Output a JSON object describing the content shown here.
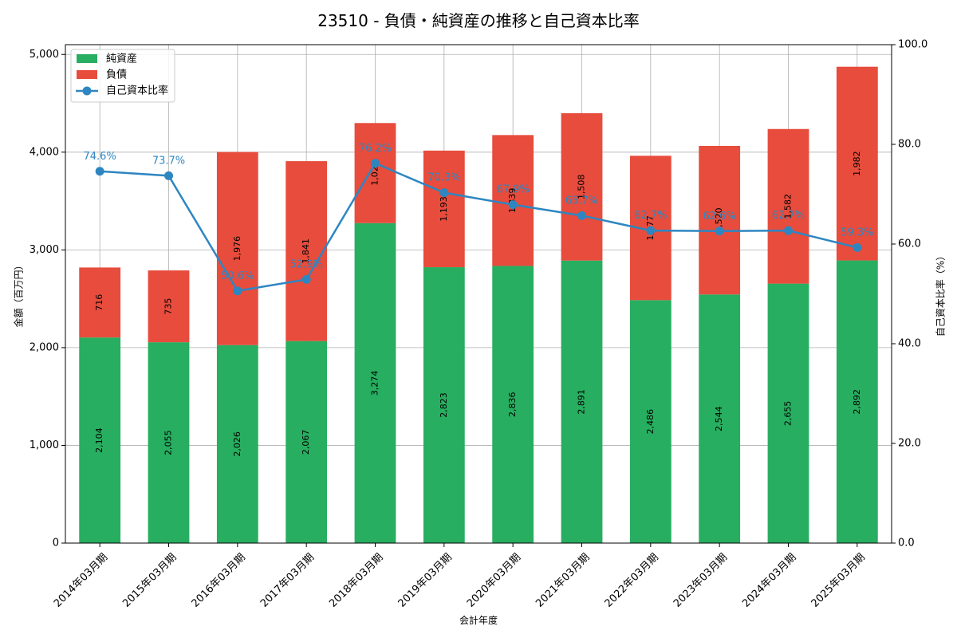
{
  "chart_data": {
    "type": "bar",
    "title": "23510 - 負債・純資産の推移と自己資本比率",
    "xlabel": "会計年度",
    "ylabel_left": "金額（百万円）",
    "ylabel_right": "自己資本比率（%）",
    "categories": [
      "2014年03月期",
      "2015年03月期",
      "2016年03月期",
      "2017年03月期",
      "2018年03月期",
      "2019年03月期",
      "2020年03月期",
      "2021年03月期",
      "2022年03月期",
      "2023年03月期",
      "2024年03月期",
      "2025年03月期"
    ],
    "ylim_left": [
      0,
      5100
    ],
    "ylim_right": [
      0,
      100
    ],
    "left_ticks": [
      0,
      1000,
      2000,
      3000,
      4000,
      5000
    ],
    "left_tick_labels": [
      "0",
      "1,000",
      "2,000",
      "3,000",
      "4,000",
      "5,000"
    ],
    "right_ticks": [
      0,
      20,
      40,
      60,
      80,
      100
    ],
    "right_tick_labels": [
      "0.0",
      "20.0",
      "40.0",
      "60.0",
      "80.0",
      "100.0"
    ],
    "grid": true,
    "legend_position": "top-left",
    "series": [
      {
        "name": "純資産",
        "kind": "bar",
        "color": "#27ae60",
        "values": [
          2104,
          2055,
          2026,
          2067,
          3274,
          2823,
          2836,
          2891,
          2486,
          2544,
          2655,
          2892
        ],
        "labels": [
          "2,104",
          "2,055",
          "2,026",
          "2,067",
          "3,274",
          "2,823",
          "2,836",
          "2,891",
          "2,486",
          "2,544",
          "2,655",
          "2,892"
        ]
      },
      {
        "name": "負債",
        "kind": "bar",
        "color": "#e74c3c",
        "values": [
          716,
          735,
          1976,
          1841,
          1024,
          1193,
          1339,
          1508,
          1477,
          1520,
          1582,
          1982
        ],
        "labels": [
          "716",
          "735",
          "1,976",
          "1,841",
          "1,024",
          "1,193",
          "1,339",
          "1,508",
          "1,477",
          "1,520",
          "1,582",
          "1,982"
        ]
      },
      {
        "name": "自己資本比率",
        "kind": "line",
        "color": "#2e86c1",
        "values": [
          74.6,
          73.7,
          50.6,
          52.9,
          76.2,
          70.3,
          67.9,
          65.7,
          62.7,
          62.6,
          62.7,
          59.3
        ],
        "labels": [
          "74.6%",
          "73.7%",
          "50.6%",
          "52.9%",
          "76.2%",
          "70.3%",
          "67.9%",
          "65.7%",
          "62.7%",
          "62.6%",
          "62.7%",
          "59.3%"
        ]
      }
    ]
  }
}
